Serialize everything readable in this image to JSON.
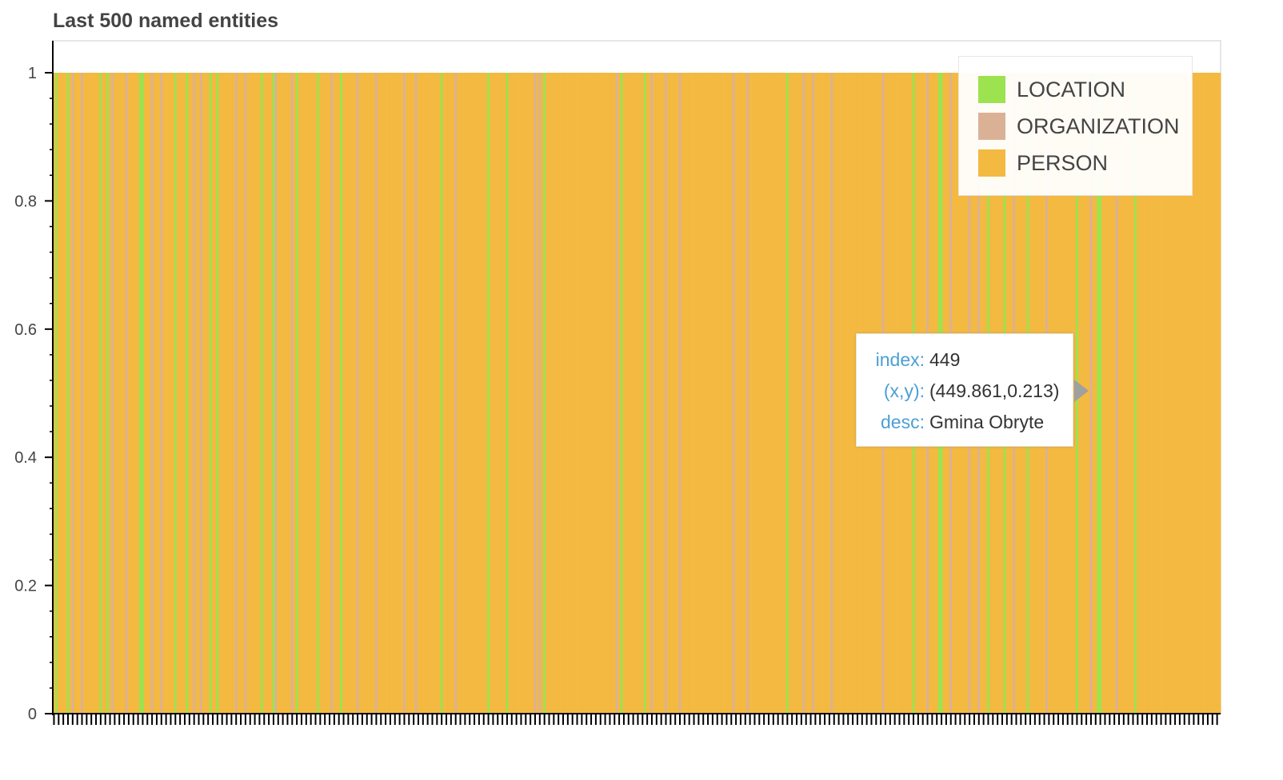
{
  "chart_data": {
    "type": "bar",
    "title": "Last 500 named entities",
    "xlabel": "",
    "ylabel": "",
    "ylim": [
      0,
      1
    ],
    "yticks": [
      0,
      0.2,
      0.4,
      0.6,
      0.8,
      1
    ],
    "ytick_labels": [
      "0",
      "0.2",
      "0.4",
      "0.6",
      "0.8",
      "1"
    ],
    "n_bars": 500,
    "bar_value": 1,
    "legend": {
      "position": "top-right",
      "entries": [
        {
          "label": "LOCATION",
          "color": "#9de24f"
        },
        {
          "label": "ORGANIZATION",
          "color": "#dbb196"
        },
        {
          "label": "PERSON",
          "color": "#f4b940"
        }
      ]
    },
    "categories_by_index": "PLPPPPLPOPPPOPPPPPPPLPPLPOPPPPPOPPPPPLLPPPOPPPOPPPPPLPPPPLPPOPPOPPPLPPLPPPPPPPOPPPOPPPPPPLPPPPLOPPPPPPOPLPPPPPPPPLPPPPPOPPPLPPPPPPOPPPPPPPOPPPPPPPPPPPOPPPPOPPPPPPPPPPLPPPPPOPPPPPPPPPPPPPLPPPPPPPLPPPPPPPPPPPOPOPLPPPPPPPPPPPPPPPPPPPPPPPPPPPPPPOPLPPPPPPPPPLPPOPPPPPOPPPPPOPPPPPPPPPPPPPPPPPPPPPPOPPPPPOPPPPPPPPPPPPPPPPLPPPPPPOPPPOPPPPPPPOPPPPPPPPPPPPPPPPPPPPPOPPPPPPPPPPPPLPPPPPOPPPPLLPPPOPPPPPPPOPPPOPPPLPPPPPPLPPPOPPPPPLPPPPPPPOPPPPPPPPPPPPLPPPPPOPPLLPPPPPPOPPPPPPPLPPPPPP",
    "category_codes": {
      "L": "LOCATION",
      "O": "ORGANIZATION",
      "P": "PERSON"
    }
  },
  "tooltip": {
    "index_key": "index:",
    "index_value": "449",
    "xy_key": "(x,y):",
    "xy_value": "(449.861,0.213)",
    "desc_key": "desc:",
    "desc_value": "Gmina Obryte"
  }
}
